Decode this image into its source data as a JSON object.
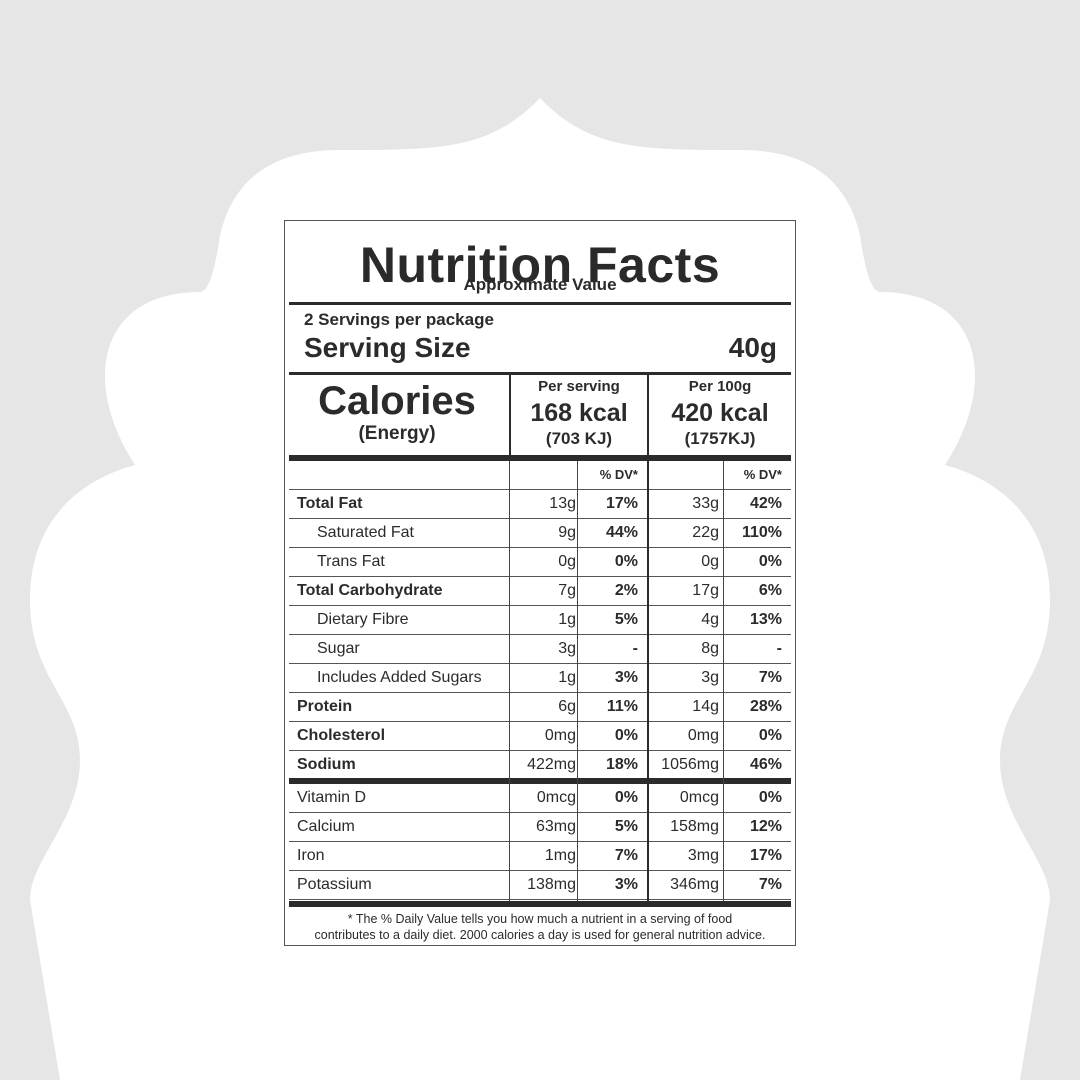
{
  "title": "Nutrition Facts",
  "subtitle": "Approximate Value",
  "servings_per_package": "2 Servings per package",
  "serving_size_label": "Serving Size",
  "serving_size_value": "40g",
  "calories_label": "Calories",
  "calories_sub": "(Energy)",
  "per_serving_label": "Per serving",
  "per_serving_kcal": "168 kcal",
  "per_serving_kj": "(703 KJ)",
  "per_100g_label": "Per 100g",
  "per_100g_kcal": "420 kcal",
  "per_100g_kj": "(1757KJ)",
  "dv_header": "% DV*",
  "nutrients": [
    {
      "name": "Total Fat",
      "bold": true,
      "indent": false,
      "amt1": "13g",
      "dv1": "17%",
      "amt2": "33g",
      "dv2": "42%"
    },
    {
      "name": "Saturated Fat",
      "bold": false,
      "indent": true,
      "amt1": "9g",
      "dv1": "44%",
      "amt2": "22g",
      "dv2": "110%"
    },
    {
      "name": "Trans Fat",
      "bold": false,
      "indent": true,
      "amt1": "0g",
      "dv1": "0%",
      "amt2": "0g",
      "dv2": "0%"
    },
    {
      "name": "Total Carbohydrate",
      "bold": true,
      "indent": false,
      "amt1": "7g",
      "dv1": "2%",
      "amt2": "17g",
      "dv2": "6%"
    },
    {
      "name": "Dietary Fibre",
      "bold": false,
      "indent": true,
      "amt1": "1g",
      "dv1": "5%",
      "amt2": "4g",
      "dv2": "13%"
    },
    {
      "name": "Sugar",
      "bold": false,
      "indent": true,
      "amt1": "3g",
      "dv1": "-",
      "amt2": "8g",
      "dv2": "-"
    },
    {
      "name": "Includes Added Sugars",
      "bold": false,
      "indent": true,
      "amt1": "1g",
      "dv1": "3%",
      "amt2": "3g",
      "dv2": "7%"
    },
    {
      "name": "Protein",
      "bold": true,
      "indent": false,
      "amt1": "6g",
      "dv1": "11%",
      "amt2": "14g",
      "dv2": "28%"
    },
    {
      "name": "Cholesterol",
      "bold": true,
      "indent": false,
      "amt1": "0mg",
      "dv1": "0%",
      "amt2": "0mg",
      "dv2": "0%"
    },
    {
      "name": "Sodium",
      "bold": true,
      "indent": false,
      "amt1": "422mg",
      "dv1": "18%",
      "amt2": "1056mg",
      "dv2": "46%"
    }
  ],
  "vitamins": [
    {
      "name": "Vitamin D",
      "amt1": "0mcg",
      "dv1": "0%",
      "amt2": "0mcg",
      "dv2": "0%"
    },
    {
      "name": "Calcium",
      "amt1": "63mg",
      "dv1": "5%",
      "amt2": "158mg",
      "dv2": "12%"
    },
    {
      "name": "Iron",
      "amt1": "1mg",
      "dv1": "7%",
      "amt2": "3mg",
      "dv2": "17%"
    },
    {
      "name": "Potassium",
      "amt1": "138mg",
      "dv1": "3%",
      "amt2": "346mg",
      "dv2": "7%"
    }
  ],
  "footnote_line1": "* The % Daily Value tells you how much a nutrient in a serving of food",
  "footnote_line2": "contributes to a daily diet. 2000 calories a day is used for general nutrition advice.",
  "colors": {
    "background": "#e6e6e6",
    "card": "#ffffff",
    "ink": "#2b2b2b"
  }
}
